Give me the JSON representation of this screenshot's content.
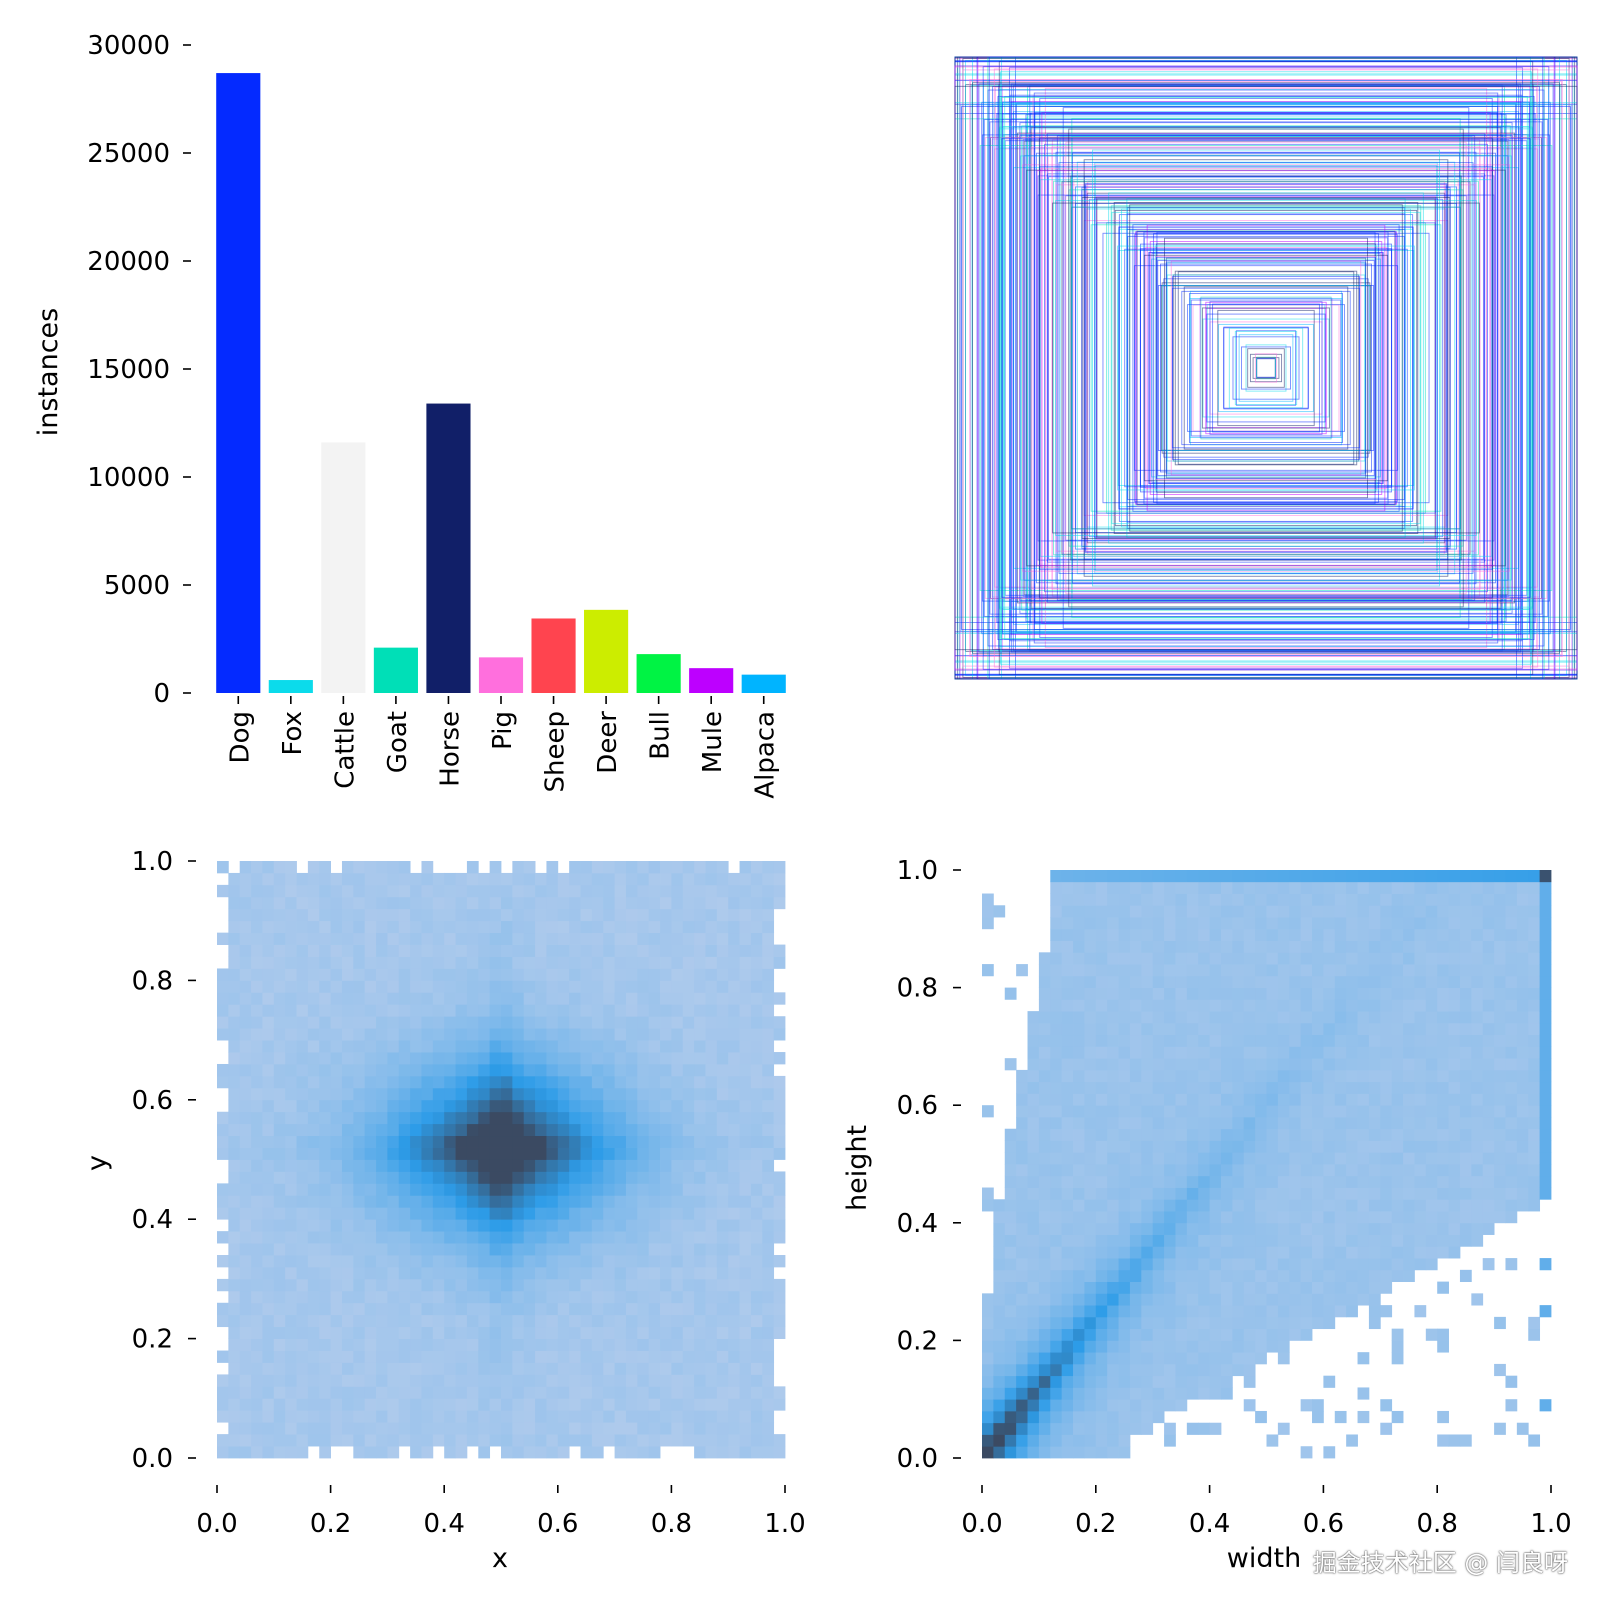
{
  "chart_data": [
    {
      "type": "bar",
      "title": "",
      "xlabel": "",
      "ylabel": "instances",
      "ylim": [
        0,
        30000
      ],
      "yticks": [
        0,
        5000,
        10000,
        15000,
        20000,
        25000,
        30000
      ],
      "categories": [
        "Dog",
        "Fox",
        "Cattle",
        "Goat",
        "Horse",
        "Pig",
        "Sheep",
        "Deer",
        "Bull",
        "Mule",
        "Alpaca"
      ],
      "values": [
        28700,
        600,
        11600,
        2100,
        13400,
        1650,
        3450,
        3850,
        1800,
        1150,
        850
      ],
      "colors": [
        "#042aff",
        "#0bdbeb",
        "#f3f3f3",
        "#00dfb7",
        "#111f68",
        "#ff6fdd",
        "#ff444f",
        "#cced00",
        "#00f344",
        "#bd00ff",
        "#00b4ff"
      ]
    },
    {
      "type": "heatmap",
      "subtype": "box-outlines",
      "title": "",
      "xlabel": "",
      "ylabel": "",
      "description_note": "",
      "colors": [
        "#042aff",
        "#0bdbeb",
        "#111f68",
        "#ff6fdd",
        "#00dfb7",
        "#bd00ff",
        "#00b4ff"
      ],
      "box_sizes": [
        0.04,
        0.07,
        0.1,
        0.13,
        0.17,
        0.2,
        0.24,
        0.28,
        0.32,
        0.36,
        0.4,
        0.45,
        0.5,
        0.55,
        0.6,
        0.64,
        0.68,
        0.72,
        0.76,
        0.8,
        0.84,
        0.88,
        0.92,
        0.96,
        1.0
      ]
    },
    {
      "type": "heatmap",
      "title": "",
      "xlabel": "x",
      "ylabel": "y",
      "xlim": [
        0,
        1
      ],
      "ylim": [
        0,
        1
      ],
      "xticks": [
        "0.0",
        "0.2",
        "0.4",
        "0.6",
        "0.8",
        "1.0"
      ],
      "yticks": [
        "0.0",
        "0.2",
        "0.4",
        "0.6",
        "0.8",
        "1.0"
      ],
      "bins": 50,
      "density_center": [
        0.5,
        0.52
      ],
      "colors": [
        "#aecaec",
        "#2d9ce8",
        "#3b4a62"
      ]
    },
    {
      "type": "heatmap",
      "title": "",
      "xlabel": "width",
      "ylabel": "height",
      "xlim": [
        0,
        1
      ],
      "ylim": [
        0,
        1
      ],
      "xticks": [
        "0.0",
        "0.2",
        "0.4",
        "0.6",
        "0.8",
        "1.0"
      ],
      "yticks": [
        "0.0",
        "0.2",
        "0.4",
        "0.6",
        "0.8",
        "1.0"
      ],
      "bins": 50,
      "density_peak": [
        0.06,
        0.05
      ],
      "colors": [
        "#aecaec",
        "#2d9ce8",
        "#3b4a62"
      ]
    }
  ],
  "watermark": "掘金技术社区 @ 闫良呀"
}
